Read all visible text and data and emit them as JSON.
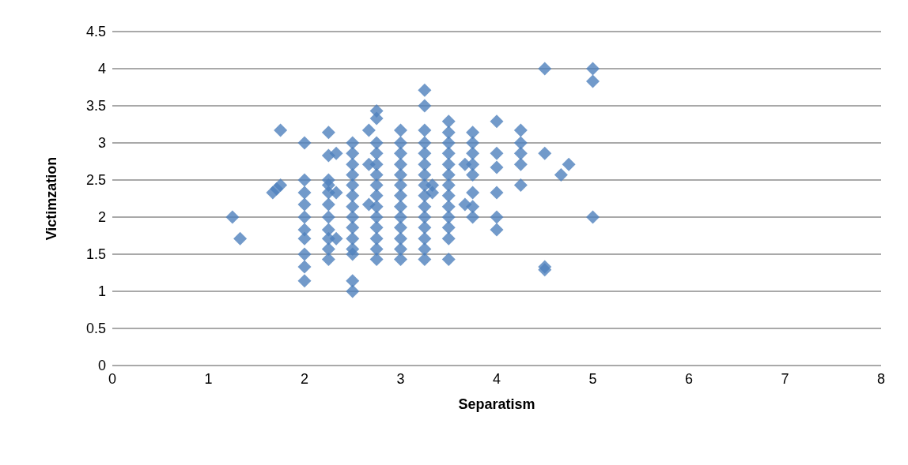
{
  "chart_data": {
    "type": "scatter",
    "xlabel": "Separatism",
    "ylabel": "Victimzation",
    "marker": "diamond",
    "grid": "y",
    "xlim": [
      0,
      8
    ],
    "xticks": [
      0,
      1,
      2,
      3,
      4,
      5,
      6,
      7,
      8
    ],
    "ylim": [
      0,
      4.5
    ],
    "yticks": [
      0,
      0.5,
      1,
      1.5,
      2,
      2.5,
      3,
      3.5,
      4,
      4.5
    ],
    "series": [
      {
        "color": "#4f81bd",
        "x": [
          1.25,
          1.33,
          1.67,
          1.71,
          1.75,
          1.75,
          2,
          2,
          2,
          2,
          2,
          2,
          2,
          2,
          2,
          2,
          2.25,
          2.25,
          2.25,
          2.25,
          2.25,
          2.25,
          2.25,
          2.25,
          2.25,
          2.25,
          2.25,
          2.33,
          2.33,
          2.33,
          2.5,
          2.5,
          2.5,
          2.5,
          2.5,
          2.5,
          2.5,
          2.5,
          2.5,
          2.5,
          2.5,
          2.5,
          2.5,
          2.5,
          2.67,
          2.67,
          2.67,
          2.75,
          2.75,
          2.75,
          2.75,
          2.75,
          2.75,
          2.75,
          2.75,
          2.75,
          2.75,
          2.75,
          2.75,
          2.75,
          2.75,
          3,
          3,
          3,
          3,
          3,
          3,
          3,
          3,
          3,
          3,
          3,
          3,
          3,
          3.25,
          3.25,
          3.25,
          3.25,
          3.25,
          3.25,
          3.25,
          3.25,
          3.25,
          3.25,
          3.25,
          3.25,
          3.25,
          3.25,
          3.25,
          3.33,
          3.33,
          3.5,
          3.5,
          3.5,
          3.5,
          3.5,
          3.5,
          3.5,
          3.5,
          3.5,
          3.5,
          3.5,
          3.5,
          3.5,
          3.67,
          3.67,
          3.75,
          3.75,
          3.75,
          3.75,
          3.75,
          3.75,
          3.75,
          3.75,
          4,
          4,
          4,
          4,
          4,
          4,
          4.25,
          4.25,
          4.25,
          4.25,
          4.25,
          4.5,
          4.5,
          4.5,
          4.5,
          4.67,
          4.75,
          5,
          5,
          5
        ],
        "values": [
          2.0,
          1.71,
          2.33,
          2.38,
          2.43,
          3.17,
          3.0,
          2.5,
          2.33,
          2.17,
          2.0,
          1.83,
          1.71,
          1.5,
          1.33,
          1.14,
          3.14,
          2.83,
          2.5,
          2.43,
          2.33,
          2.17,
          2.0,
          1.83,
          1.71,
          1.57,
          1.43,
          2.86,
          2.33,
          1.71,
          3.0,
          2.86,
          2.71,
          2.57,
          2.43,
          2.29,
          2.14,
          2.0,
          1.86,
          1.71,
          1.57,
          1.5,
          1.14,
          1.0,
          3.17,
          2.71,
          2.17,
          3.43,
          3.33,
          3.0,
          2.86,
          2.71,
          2.57,
          2.43,
          2.29,
          2.14,
          2.0,
          1.86,
          1.71,
          1.57,
          1.43,
          3.17,
          3.0,
          2.86,
          2.71,
          2.57,
          2.43,
          2.29,
          2.14,
          2.0,
          1.86,
          1.71,
          1.57,
          1.43,
          3.71,
          3.5,
          3.17,
          3.0,
          2.86,
          2.71,
          2.57,
          2.43,
          2.29,
          2.14,
          2.0,
          1.86,
          1.71,
          1.57,
          1.43,
          2.43,
          2.33,
          3.29,
          3.14,
          3.0,
          2.86,
          2.71,
          2.57,
          2.43,
          2.29,
          2.14,
          2.0,
          1.86,
          1.71,
          1.43,
          2.71,
          2.17,
          3.14,
          3.0,
          2.86,
          2.71,
          2.57,
          2.33,
          2.14,
          2.0,
          3.29,
          2.86,
          2.67,
          2.33,
          2.0,
          1.83,
          3.17,
          3.0,
          2.86,
          2.71,
          2.43,
          4.0,
          2.86,
          1.33,
          1.29,
          2.57,
          2.71,
          4.0,
          3.83,
          2.0
        ]
      }
    ]
  }
}
